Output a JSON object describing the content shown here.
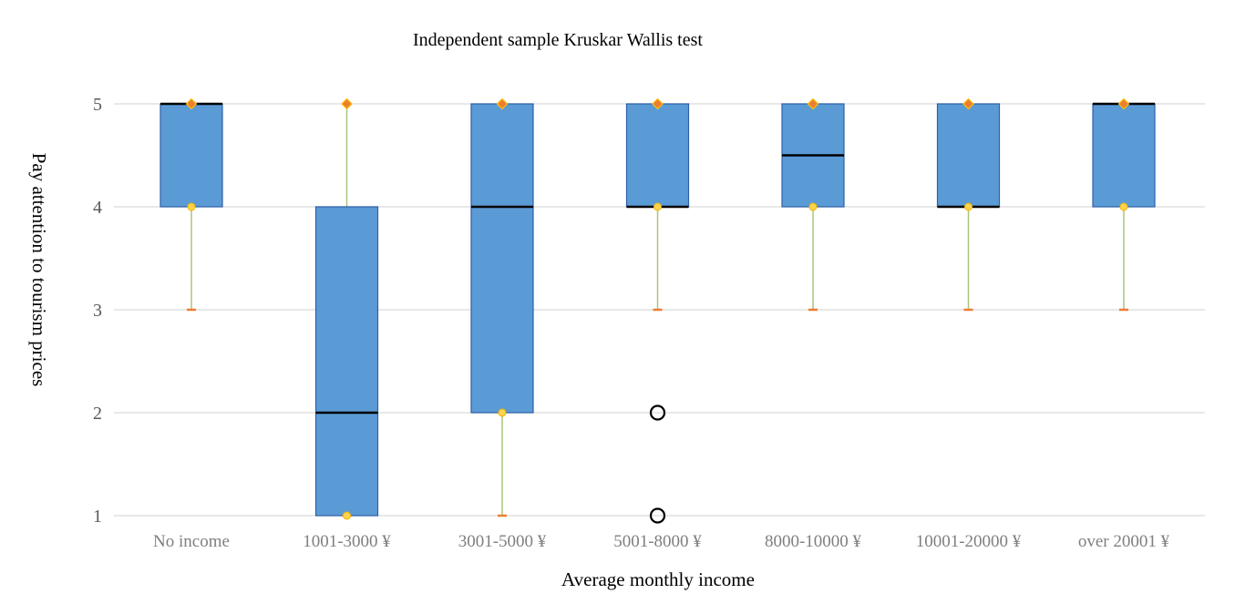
{
  "chart_data": {
    "type": "box",
    "title": "Independent sample Kruskar Wallis test",
    "xlabel": "Average monthly income",
    "ylabel": "Pay attention to tourism prices",
    "ylim": [
      1,
      5
    ],
    "yticks": [
      "1",
      "2",
      "3",
      "4",
      "5"
    ],
    "grid": true,
    "legend": "none",
    "colors": {
      "box_fill": "#5b9bd5",
      "box_stroke": "#2f5fa8",
      "median": "#000000",
      "whisker": "#a9c47f",
      "whisker_cap": "#ed7d31",
      "max_marker": "#ed7d31",
      "quartile_marker": "#ffd34d",
      "gridline": "#d9d9d9",
      "outlier": "#000000"
    },
    "categories": [
      "No income",
      "1001-3000 ¥",
      "3001-5000 ¥",
      "5001-8000 ¥",
      "8000-10000 ¥",
      "10001-20000 ¥",
      "over 20001 ¥"
    ],
    "boxes": [
      {
        "min": 3,
        "q1": 4,
        "median": 5,
        "q3": 5,
        "max": 5,
        "outliers": []
      },
      {
        "min": 1,
        "q1": 1,
        "median": 2,
        "q3": 4,
        "max": 5,
        "outliers": []
      },
      {
        "min": 1,
        "q1": 2,
        "median": 4,
        "q3": 5,
        "max": 5,
        "outliers": []
      },
      {
        "min": 3,
        "q1": 4,
        "median": 4,
        "q3": 5,
        "max": 5,
        "outliers": [
          2,
          1
        ]
      },
      {
        "min": 3,
        "q1": 4,
        "median": 4.5,
        "q3": 5,
        "max": 5,
        "outliers": []
      },
      {
        "min": 3,
        "q1": 4,
        "median": 4,
        "q3": 5,
        "max": 5,
        "outliers": []
      },
      {
        "min": 3,
        "q1": 4,
        "median": 5,
        "q3": 5,
        "max": 5,
        "outliers": []
      }
    ]
  }
}
